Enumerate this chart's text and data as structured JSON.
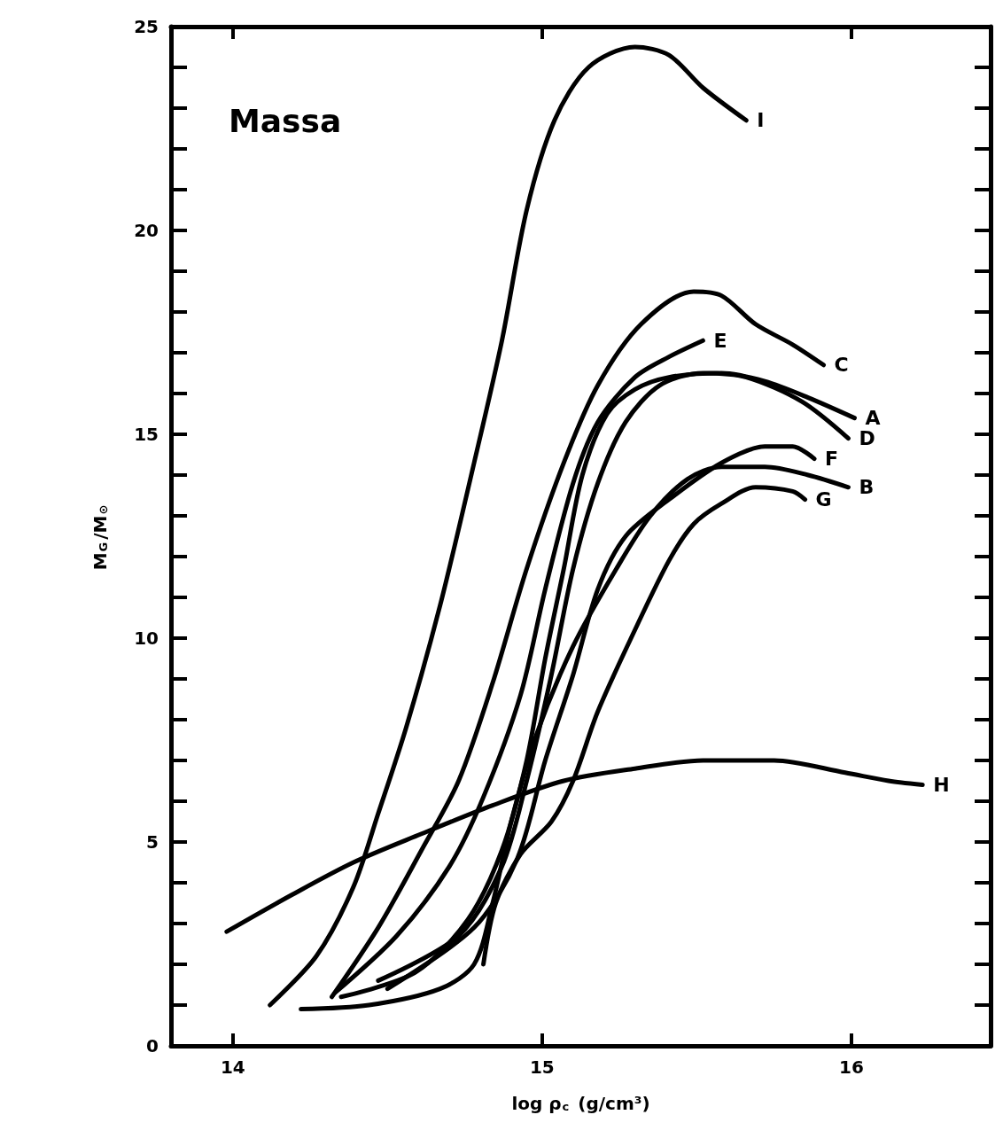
{
  "chart_data": {
    "type": "line",
    "xlabel": "log ρ$_{c}$ (g/cm³)",
    "ylabel": "M$_{G}$/M$_{⊙}$",
    "annotations": [
      "Massa"
    ],
    "xlim": [
      13.8,
      16.45
    ],
    "xticks": [
      14,
      15,
      16
    ],
    "ylim": [
      0,
      25
    ],
    "yticks": [
      0,
      5,
      10,
      15,
      20,
      25
    ],
    "grid": false,
    "legend": false,
    "marker": "none",
    "line_style": "solid",
    "series": [
      {
        "name": "I",
        "color": "#000000",
        "x": [
          14.12,
          14.27,
          14.39,
          14.47,
          14.56,
          14.67,
          14.78,
          14.87,
          14.95,
          15.04,
          15.15,
          15.3,
          15.41,
          15.52,
          15.66
        ],
        "values": [
          1.0,
          2.2,
          3.9,
          5.7,
          7.8,
          10.8,
          14.3,
          17.3,
          20.5,
          22.7,
          24.0,
          24.5,
          24.3,
          23.5,
          22.7
        ]
      },
      {
        "name": "C",
        "color": "#000000",
        "x": [
          14.32,
          14.47,
          14.61,
          14.73,
          14.84,
          14.95,
          15.07,
          15.18,
          15.32,
          15.49,
          15.58,
          15.69,
          15.81,
          15.91
        ],
        "values": [
          1.2,
          2.9,
          4.8,
          6.5,
          8.9,
          11.7,
          14.3,
          16.2,
          17.7,
          18.5,
          18.4,
          17.7,
          17.2,
          16.7
        ]
      },
      {
        "name": "E",
        "color": "#000000",
        "x": [
          14.33,
          14.53,
          14.7,
          14.81,
          14.93,
          15.01,
          15.1,
          15.18,
          15.3,
          15.41,
          15.52
        ],
        "values": [
          1.3,
          2.7,
          4.4,
          6.1,
          8.6,
          11.2,
          13.8,
          15.3,
          16.4,
          16.9,
          17.3
        ]
      },
      {
        "name": "A",
        "color": "#000000",
        "x": [
          14.35,
          14.59,
          14.76,
          14.87,
          14.95,
          15.01,
          15.07,
          15.13,
          15.21,
          15.3,
          15.41,
          15.58,
          15.72,
          15.86,
          16.01
        ],
        "values": [
          1.2,
          1.8,
          3.1,
          4.8,
          7.0,
          9.5,
          11.7,
          14.0,
          15.5,
          16.1,
          16.4,
          16.5,
          16.3,
          15.9,
          15.4
        ]
      },
      {
        "name": "D",
        "color": "#000000",
        "x": [
          14.47,
          14.73,
          14.87,
          14.95,
          15.03,
          15.1,
          15.18,
          15.27,
          15.38,
          15.52,
          15.66,
          15.84,
          15.99
        ],
        "values": [
          1.6,
          2.7,
          4.4,
          6.5,
          9.1,
          11.7,
          13.8,
          15.3,
          16.2,
          16.5,
          16.4,
          15.8,
          14.9
        ]
      },
      {
        "name": "F",
        "color": "#000000",
        "x": [
          14.5,
          14.78,
          14.92,
          15.01,
          15.1,
          15.18,
          15.27,
          15.41,
          15.58,
          15.72,
          15.81,
          15.88
        ],
        "values": [
          1.4,
          2.9,
          4.6,
          7.0,
          9.1,
          11.2,
          12.5,
          13.4,
          14.3,
          14.7,
          14.7,
          14.4
        ]
      },
      {
        "name": "B",
        "color": "#000000",
        "x": [
          14.22,
          14.44,
          14.67,
          14.78,
          14.84,
          14.9,
          14.98,
          15.1,
          15.24,
          15.35,
          15.47,
          15.58,
          15.72,
          15.86,
          15.99
        ],
        "values": [
          0.9,
          1.0,
          1.4,
          2.0,
          3.5,
          5.5,
          7.6,
          9.8,
          11.7,
          13.0,
          13.9,
          14.2,
          14.2,
          14.0,
          13.7
        ]
      },
      {
        "name": "G",
        "color": "#000000",
        "x": [
          14.81,
          14.85,
          14.93,
          15.03,
          15.1,
          15.18,
          15.3,
          15.41,
          15.49,
          15.58,
          15.69,
          15.81,
          15.85
        ],
        "values": [
          2.0,
          3.5,
          4.7,
          5.5,
          6.5,
          8.2,
          10.2,
          11.9,
          12.8,
          13.3,
          13.7,
          13.6,
          13.4
        ]
      },
      {
        "name": "H",
        "color": "#000000",
        "x": [
          13.98,
          14.19,
          14.39,
          14.61,
          14.84,
          15.07,
          15.3,
          15.52,
          15.75,
          15.98,
          16.12,
          16.23
        ],
        "values": [
          2.8,
          3.7,
          4.5,
          5.2,
          5.9,
          6.5,
          6.8,
          7.0,
          7.0,
          6.7,
          6.5,
          6.4
        ]
      }
    ]
  }
}
